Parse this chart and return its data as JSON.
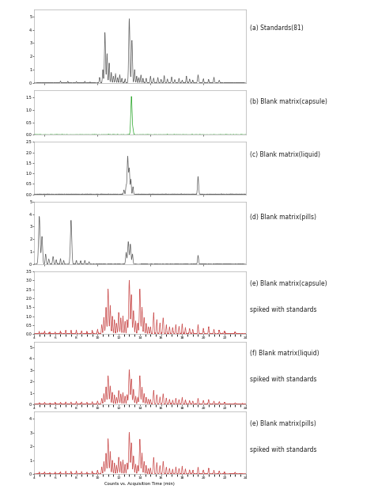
{
  "panels": [
    {
      "label": "(a) Standards(81)",
      "color": "#666666",
      "ylim": [
        0,
        5.5
      ],
      "yticks": [
        0,
        1,
        2,
        3,
        4,
        5
      ],
      "style": "standards",
      "show_xaxis": false,
      "label_lines": [
        "(a) Standards(81)"
      ]
    },
    {
      "label": "(b) Blank matrix(capsule)",
      "color": "#33aa33",
      "ylim": [
        0,
        1.8
      ],
      "yticks": [
        0,
        0.5,
        1.0,
        1.5
      ],
      "style": "blank_capsule",
      "show_xaxis": false,
      "label_lines": [
        "(b) Blank matrix(capsule)"
      ]
    },
    {
      "label": "(c) Blank matrix(liquid)",
      "color": "#666666",
      "ylim": [
        0,
        2.5
      ],
      "yticks": [
        0,
        0.5,
        1.0,
        1.5,
        2.0,
        2.5
      ],
      "style": "blank_liquid",
      "show_xaxis": false,
      "label_lines": [
        "(c) Blank matrix(liquid)"
      ]
    },
    {
      "label": "(d) Blank matrix(pills)",
      "color": "#666666",
      "ylim": [
        0,
        5.0
      ],
      "yticks": [
        0,
        1,
        2,
        3,
        4,
        5
      ],
      "style": "blank_pills",
      "show_xaxis": false,
      "label_lines": [
        "(d) Blank matrix(pills)"
      ]
    },
    {
      "label": "(e) Blank matrix(capsule)\nspiked with standards",
      "color": "#cc5555",
      "ylim": [
        0,
        3.5
      ],
      "yticks": [
        0,
        0.5,
        1.0,
        1.5,
        2.0,
        2.5,
        3.0,
        3.5
      ],
      "style": "spiked",
      "show_xaxis": true,
      "label_lines": [
        "(e) Blank matrix(capsule)",
        "spiked with standards"
      ]
    },
    {
      "label": "(f) Blank matrix(liquid)\nspiked with standards",
      "color": "#cc5555",
      "ylim": [
        0,
        5.5
      ],
      "yticks": [
        0,
        1,
        2,
        3,
        4,
        5
      ],
      "style": "spiked",
      "show_xaxis": true,
      "label_lines": [
        "(f) Blank matrix(liquid)",
        "spiked with standards"
      ]
    },
    {
      "label": "(e) Blank matrix(pills)\nspiked with standards",
      "color": "#cc5555",
      "ylim": [
        0,
        4.5
      ],
      "yticks": [
        0,
        1,
        2,
        3,
        4
      ],
      "style": "spiked",
      "show_xaxis": true,
      "label_lines": [
        "(e) Blank matrix(pills)",
        "spiked with standards"
      ]
    }
  ],
  "xlim": [
    4,
    24
  ],
  "xlabel": "Counts vs. Acquisition Time (min)",
  "background": "#ffffff",
  "panel_bg": "#ffffff",
  "height_ratios": [
    1.4,
    0.85,
    1.0,
    1.2,
    1.2,
    1.2,
    1.2
  ]
}
